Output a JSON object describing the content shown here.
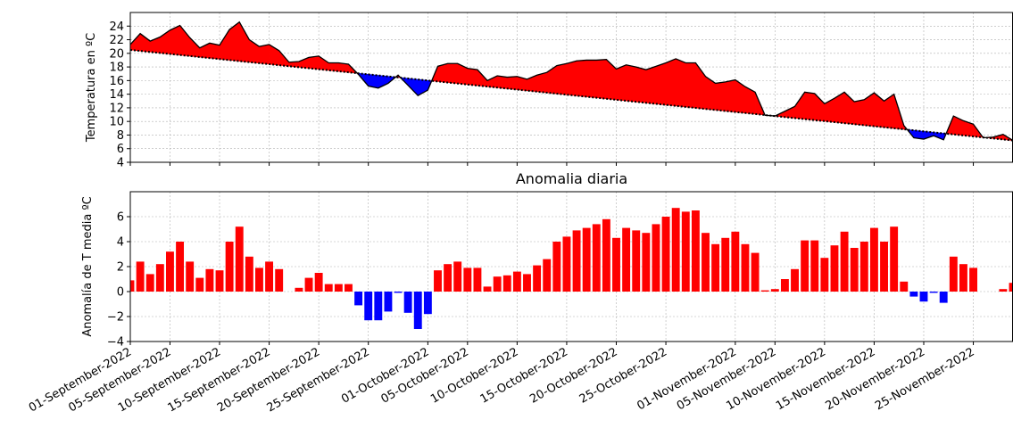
{
  "chart_data": [
    {
      "type": "area",
      "title": "",
      "xlabel": "",
      "ylabel": "Temperatura en ºC",
      "ylim": [
        4,
        26
      ],
      "yticks": [
        4,
        6,
        8,
        10,
        12,
        14,
        16,
        18,
        20,
        22,
        24
      ],
      "grid": true,
      "colors": {
        "above": "#ff0000",
        "below": "#0000ff",
        "line": "#000000",
        "reference": "#000000"
      },
      "series": [
        {
          "values": [
            21.3,
            22.9,
            21.8,
            22.4,
            23.4,
            24.1,
            22.3,
            20.8,
            21.5,
            21.2,
            23.5,
            24.6,
            22.0,
            21.0,
            21.3,
            20.4,
            18.7,
            18.8,
            19.4,
            19.6,
            18.6,
            18.6,
            18.4,
            16.9,
            15.2,
            14.9,
            15.6,
            16.8,
            15.3,
            13.8,
            14.6,
            18.1,
            18.5,
            18.5,
            17.8,
            17.6,
            16.0,
            16.7,
            16.5,
            16.6,
            16.2,
            16.8,
            17.2,
            18.2,
            18.5,
            18.9,
            19.0,
            19.0,
            19.1,
            17.7,
            18.3,
            18.0,
            17.6,
            18.1,
            18.6,
            19.2,
            18.6,
            18.6,
            16.6,
            15.6,
            15.8,
            16.1,
            15.1,
            14.3,
            10.9,
            10.8,
            11.5,
            12.2,
            14.3,
            14.1,
            12.6,
            13.4,
            14.3,
            12.9,
            13.2,
            14.2,
            13.0,
            14.0,
            9.4,
            7.6,
            7.4,
            7.9,
            7.3,
            10.8,
            10.1,
            9.6,
            7.6,
            7.7,
            8.1,
            7.2
          ]
        },
        {
          "values_start": 20.5,
          "values_end": 7.2
        }
      ]
    },
    {
      "type": "bar",
      "title": "Anomalia diaria",
      "xlabel": "",
      "ylabel": "Anomalía de T media ºC",
      "ylim": [
        -4,
        8
      ],
      "yticks": [
        -4,
        -2,
        0,
        2,
        4,
        6
      ],
      "grid": true,
      "colors": {
        "positive": "#ff0000",
        "negative": "#0000ff"
      },
      "values": [
        0.9,
        2.4,
        1.4,
        2.2,
        3.2,
        4.0,
        2.4,
        1.1,
        1.8,
        1.7,
        4.0,
        5.2,
        2.8,
        1.9,
        2.4,
        1.8,
        0.0,
        0.3,
        1.1,
        1.5,
        0.6,
        0.6,
        0.6,
        -1.1,
        -2.3,
        -2.3,
        -1.6,
        -0.1,
        -1.7,
        -3.0,
        -1.8,
        1.7,
        2.2,
        2.4,
        1.9,
        1.9,
        0.4,
        1.2,
        1.3,
        1.6,
        1.4,
        2.1,
        2.6,
        4.0,
        4.4,
        4.9,
        5.1,
        5.4,
        5.8,
        4.3,
        5.1,
        4.9,
        4.7,
        5.4,
        6.0,
        6.7,
        6.4,
        6.5,
        4.7,
        3.8,
        4.3,
        4.8,
        3.8,
        3.1,
        0.1,
        0.2,
        1.0,
        1.8,
        4.1,
        4.1,
        2.7,
        3.7,
        4.8,
        3.5,
        4.0,
        5.1,
        4.0,
        5.2,
        0.8,
        -0.4,
        -0.8,
        -0.1,
        -0.9,
        2.8,
        2.2,
        1.9,
        0.0,
        0.0,
        0.2,
        0.7
      ]
    }
  ],
  "x_axis": {
    "tick_labels": [
      "01-September-2022",
      "05-September-2022",
      "10-September-2022",
      "15-September-2022",
      "20-September-2022",
      "25-September-2022",
      "01-October-2022",
      "05-October-2022",
      "10-October-2022",
      "15-October-2022",
      "20-October-2022",
      "25-October-2022",
      "01-November-2022",
      "05-November-2022",
      "10-November-2022",
      "15-November-2022",
      "20-November-2022",
      "25-November-2022"
    ],
    "tick_days": [
      0,
      4,
      9,
      14,
      19,
      24,
      30,
      34,
      39,
      44,
      49,
      54,
      61,
      65,
      70,
      75,
      80,
      85
    ]
  }
}
